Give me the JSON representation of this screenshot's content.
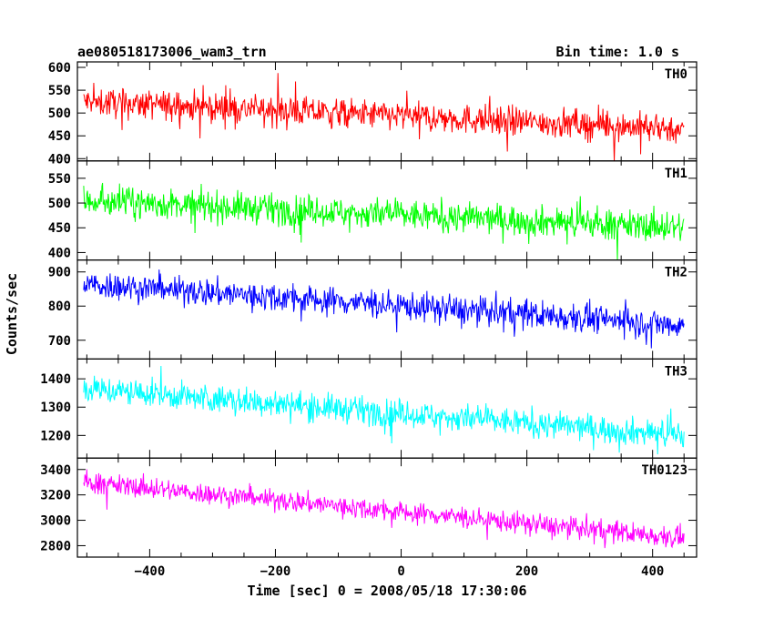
{
  "header": {
    "title": "ae080518173006_wam3_trn",
    "bin_time": "Bin time: 1.0 s"
  },
  "chart_data": {
    "type": "line",
    "xlabel": "Time [sec] 0 = 2008/05/18 17:30:06",
    "ylabel": "Counts/sec",
    "xlim": [
      -515,
      470
    ],
    "xticks": [
      -400,
      -200,
      0,
      200,
      400
    ],
    "xticklabels": [
      "−400",
      "−200",
      "0",
      "200",
      "400"
    ],
    "x_range": [
      -505,
      450
    ],
    "panels": [
      {
        "name": "TH0",
        "color": "#ff0000",
        "ylim": [
          395,
          612
        ],
        "yticks": [
          400,
          450,
          500,
          550,
          600
        ],
        "start": 525,
        "end": 465,
        "noise": 23,
        "spike": 55
      },
      {
        "name": "TH1",
        "color": "#00ff00",
        "ylim": [
          385,
          585
        ],
        "yticks": [
          400,
          450,
          500,
          550
        ],
        "start": 505,
        "end": 450,
        "noise": 22,
        "spike": 50
      },
      {
        "name": "TH2",
        "color": "#0000ff",
        "ylim": [
          645,
          935
        ],
        "yticks": [
          700,
          800,
          900
        ],
        "start": 865,
        "end": 745,
        "noise": 30,
        "spike": 70
      },
      {
        "name": "TH3",
        "color": "#00ffff",
        "ylim": [
          1120,
          1470
        ],
        "yticks": [
          1200,
          1300,
          1400
        ],
        "start": 1365,
        "end": 1200,
        "noise": 35,
        "spike": 85
      },
      {
        "name": "TH0123",
        "color": "#ff00ff",
        "ylim": [
          2710,
          3490
        ],
        "yticks": [
          2800,
          3000,
          3200,
          3400
        ],
        "start": 3300,
        "end": 2860,
        "noise": 60,
        "spike": 140
      }
    ]
  }
}
